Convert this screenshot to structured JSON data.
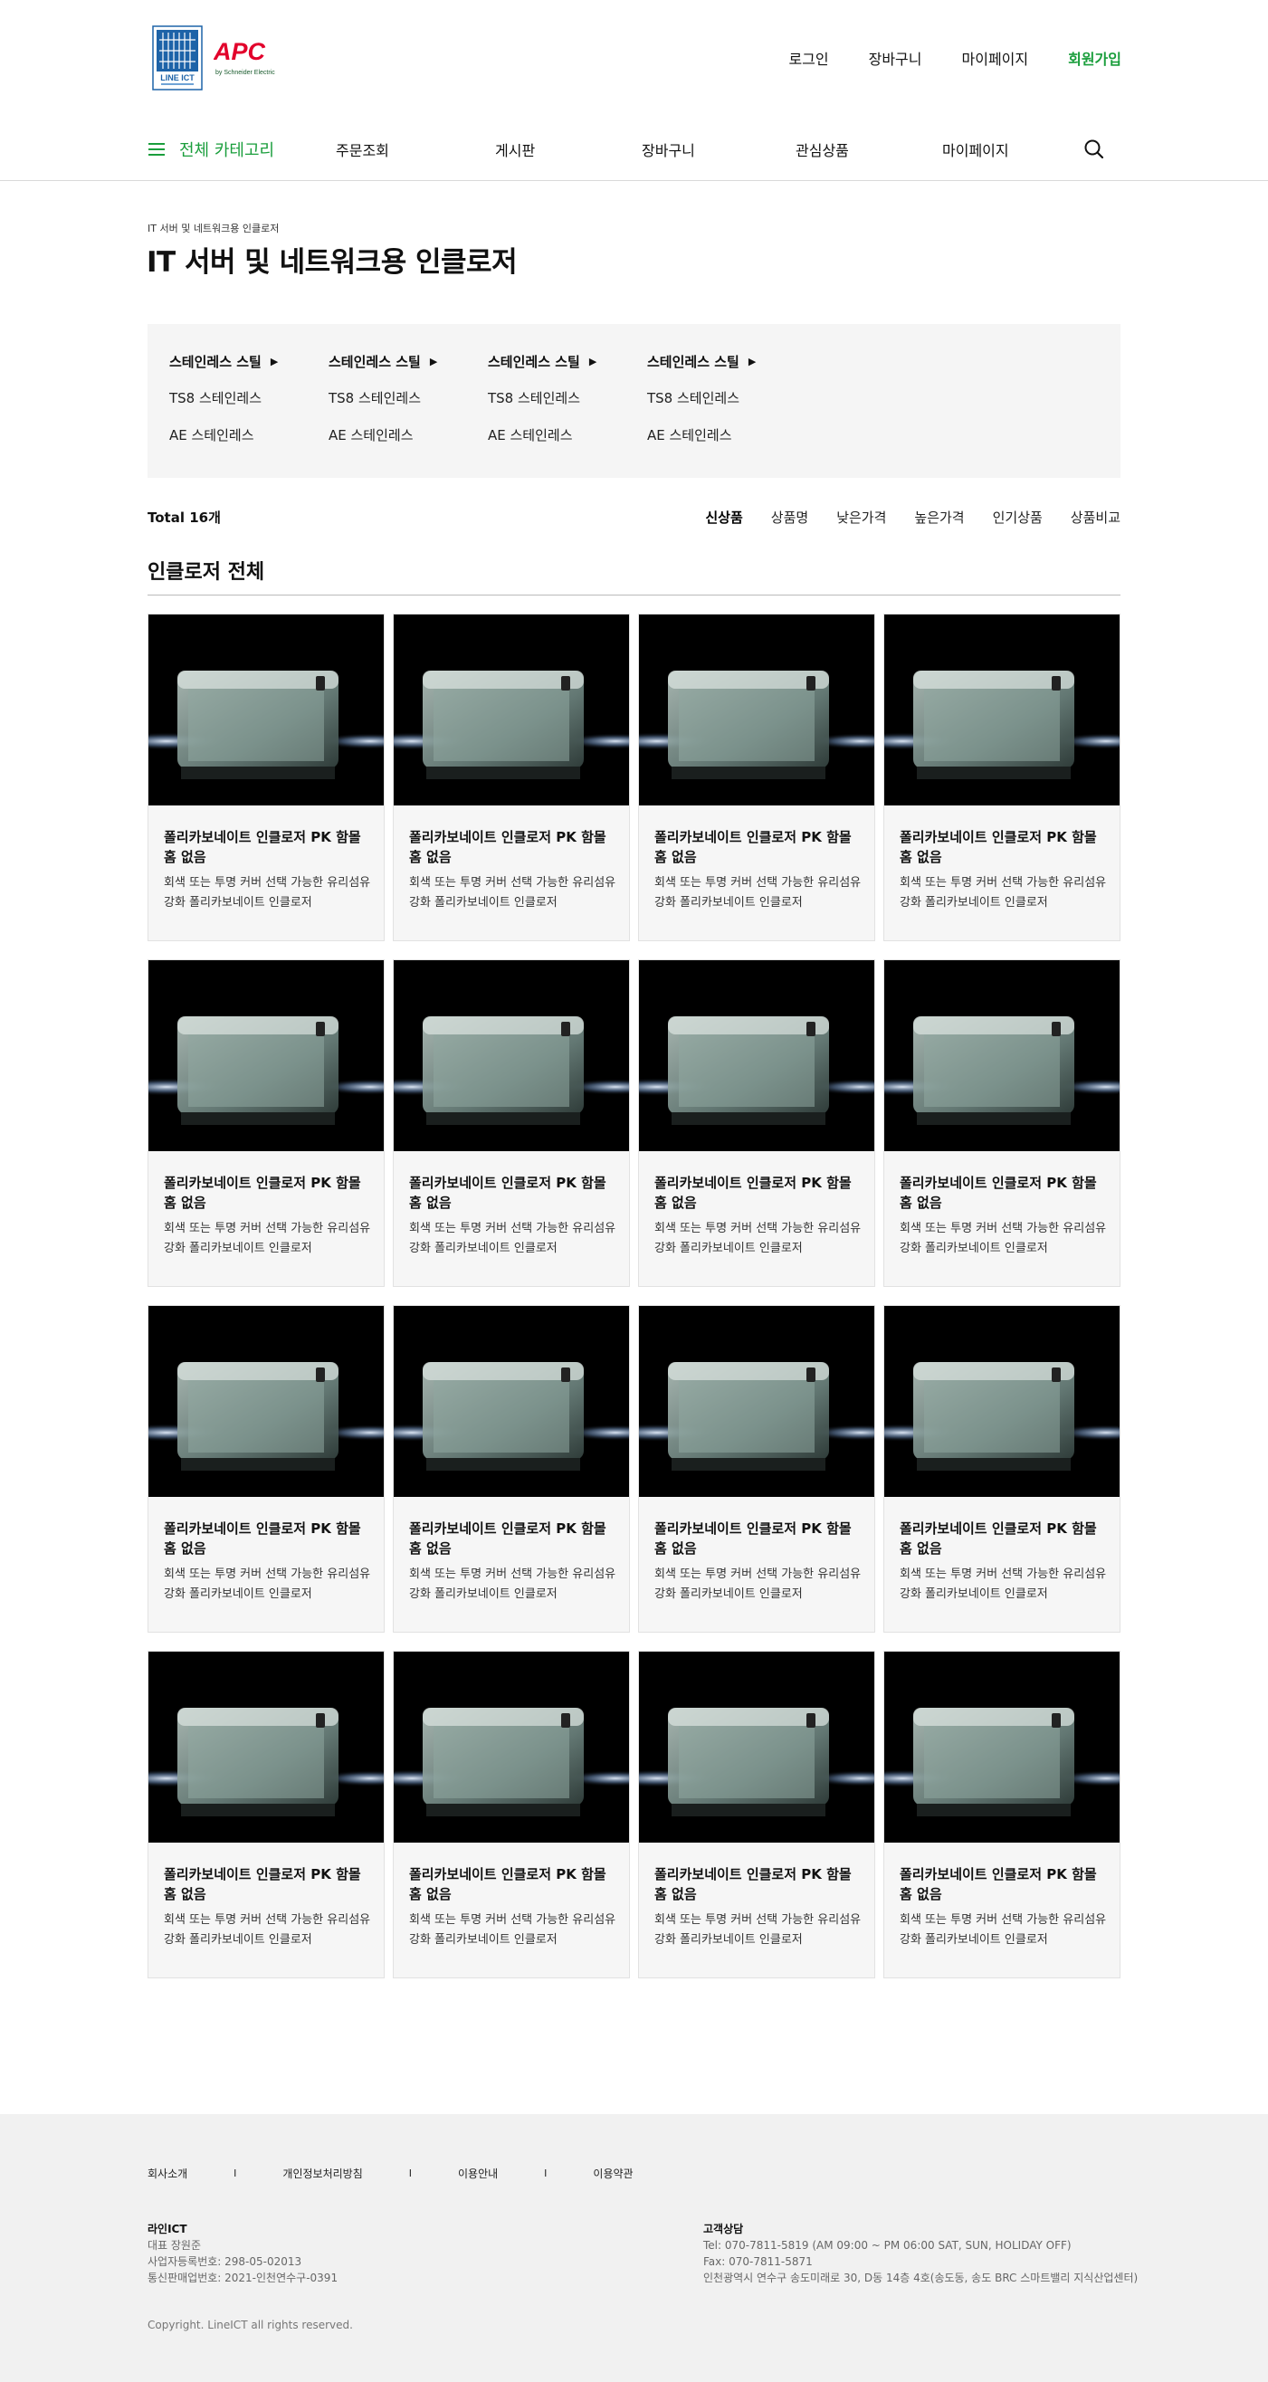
{
  "header": {
    "logo_left_text": "LINE ICT",
    "logo_apc_text": "APC",
    "logo_apc_sub": "by Schneider Electric",
    "util_links": [
      "로그인",
      "장바구니",
      "마이페이지",
      "회원가입"
    ],
    "all_category": "전체 카테고리",
    "menus": [
      "주문조회",
      "게시판",
      "장바구니",
      "관심상품",
      "마이페이지"
    ],
    "brand_green": "#1a9e3c",
    "apc_red": "#e2002b"
  },
  "page": {
    "breadcrumb": "IT 서버 및 네트워크용 인클로저",
    "title": "IT 서버 및 네트워크용 인클로저"
  },
  "categories": [
    {
      "head": "스테인레스 스틸",
      "subs": [
        "TS8 스테인레스",
        "AE 스테인레스"
      ]
    },
    {
      "head": "스테인레스 스틸",
      "subs": [
        "TS8 스테인레스",
        "AE 스테인레스"
      ]
    },
    {
      "head": "스테인레스 스틸",
      "subs": [
        "TS8 스테인레스",
        "AE 스테인레스"
      ]
    },
    {
      "head": "스테인레스 스틸",
      "subs": [
        "TS8 스테인레스",
        "AE 스테인레스"
      ]
    }
  ],
  "listing": {
    "total": "Total 16개",
    "sorts": [
      "신상품",
      "상품명",
      "낮은가격",
      "높은가격",
      "인기상품",
      "상품비교"
    ],
    "section_title": "인클로저 전체"
  },
  "products": [
    {
      "name": "폴리카보네이트 인클로저 PK 함몰 홈 없음",
      "desc": "회색 또는 투명 커버 선택 가능한 유리섬유 강화 폴리카보네이트 인클로저"
    },
    {
      "name": "폴리카보네이트 인클로저 PK 함몰 홈 없음",
      "desc": "회색 또는 투명 커버 선택 가능한 유리섬유 강화 폴리카보네이트 인클로저"
    },
    {
      "name": "폴리카보네이트 인클로저 PK 함몰 홈 없음",
      "desc": "회색 또는 투명 커버 선택 가능한 유리섬유 강화 폴리카보네이트 인클로저"
    },
    {
      "name": "폴리카보네이트 인클로저 PK 함몰 홈 없음",
      "desc": "회색 또는 투명 커버 선택 가능한 유리섬유 강화 폴리카보네이트 인클로저"
    },
    {
      "name": "폴리카보네이트 인클로저 PK 함몰 홈 없음",
      "desc": "회색 또는 투명 커버 선택 가능한 유리섬유 강화 폴리카보네이트 인클로저"
    },
    {
      "name": "폴리카보네이트 인클로저 PK 함몰 홈 없음",
      "desc": "회색 또는 투명 커버 선택 가능한 유리섬유 강화 폴리카보네이트 인클로저"
    },
    {
      "name": "폴리카보네이트 인클로저 PK 함몰 홈 없음",
      "desc": "회색 또는 투명 커버 선택 가능한 유리섬유 강화 폴리카보네이트 인클로저"
    },
    {
      "name": "폴리카보네이트 인클로저 PK 함몰 홈 없음",
      "desc": "회색 또는 투명 커버 선택 가능한 유리섬유 강화 폴리카보네이트 인클로저"
    },
    {
      "name": "폴리카보네이트 인클로저 PK 함몰 홈 없음",
      "desc": "회색 또는 투명 커버 선택 가능한 유리섬유 강화 폴리카보네이트 인클로저"
    },
    {
      "name": "폴리카보네이트 인클로저 PK 함몰 홈 없음",
      "desc": "회색 또는 투명 커버 선택 가능한 유리섬유 강화 폴리카보네이트 인클로저"
    },
    {
      "name": "폴리카보네이트 인클로저 PK 함몰 홈 없음",
      "desc": "회색 또는 투명 커버 선택 가능한 유리섬유 강화 폴리카보네이트 인클로저"
    },
    {
      "name": "폴리카보네이트 인클로저 PK 함몰 홈 없음",
      "desc": "회색 또는 투명 커버 선택 가능한 유리섬유 강화 폴리카보네이트 인클로저"
    },
    {
      "name": "폴리카보네이트 인클로저 PK 함몰 홈 없음",
      "desc": "회색 또는 투명 커버 선택 가능한 유리섬유 강화 폴리카보네이트 인클로저"
    },
    {
      "name": "폴리카보네이트 인클로저 PK 함몰 홈 없음",
      "desc": "회색 또는 투명 커버 선택 가능한 유리섬유 강화 폴리카보네이트 인클로저"
    },
    {
      "name": "폴리카보네이트 인클로저 PK 함몰 홈 없음",
      "desc": "회색 또는 투명 커버 선택 가능한 유리섬유 강화 폴리카보네이트 인클로저"
    },
    {
      "name": "폴리카보네이트 인클로저 PK 함몰 홈 없음",
      "desc": "회색 또는 투명 커버 선택 가능한 유리섬유 강화 폴리카보네이트 인클로저"
    }
  ],
  "footer": {
    "links": [
      "회사소개",
      "개인정보처리방침",
      "이용안내",
      "이용약관"
    ],
    "separator": "I",
    "company_title": "라인ICT",
    "company_lines": [
      "대표 장원준",
      "사업자등록번호: 298-05-02013",
      "통신판매업번호: 2021-인천연수구-0391"
    ],
    "cs_title": "고객상담",
    "cs_lines": [
      "Tel: 070-7811-5819  (AM 09:00 ~ PM 06:00  SAT, SUN, HOLIDAY OFF)",
      "Fax: 070-7811-5871",
      "인천광역시 연수구 송도미래로 30, D동 14층 4호(송도동, 송도 BRC 스마트밸리 지식산업센터)"
    ],
    "copyright": "Copyright. LineICT all rights reserved."
  }
}
